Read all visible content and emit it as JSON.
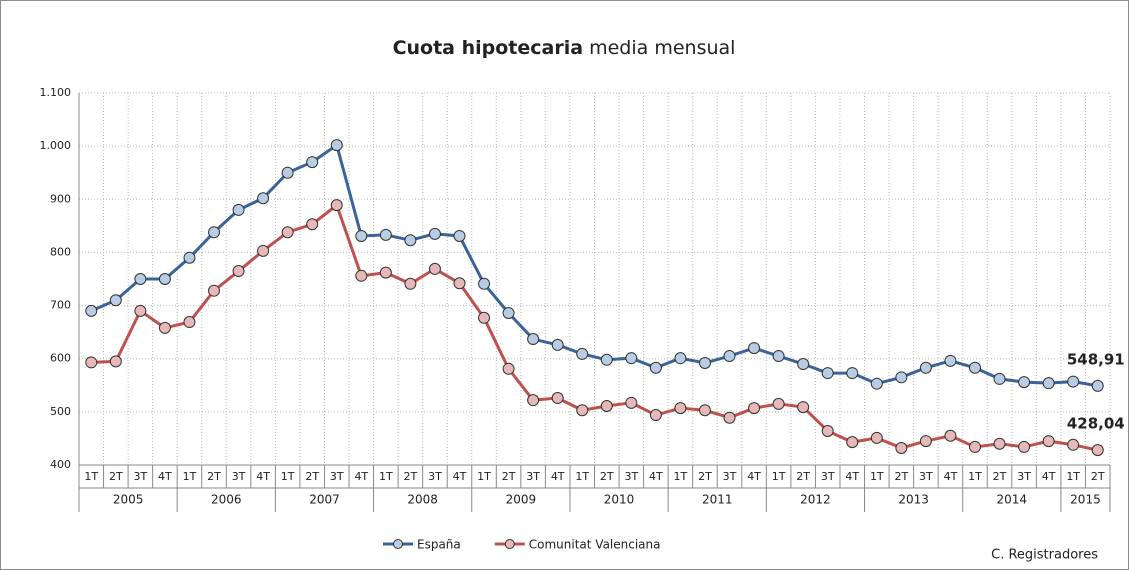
{
  "chart_data": {
    "type": "line",
    "title_bold": "Cuota hipotecaria",
    "title": "media mensual",
    "source": "C. Registradores",
    "categories": [
      "1T",
      "2T",
      "3T",
      "4T",
      "1T",
      "2T",
      "3T",
      "4T",
      "1T",
      "2T",
      "3T",
      "4T",
      "1T",
      "2T",
      "3T",
      "4T",
      "1T",
      "2T",
      "3T",
      "4T",
      "1T",
      "2T",
      "3T",
      "4T",
      "1T",
      "2T",
      "3T",
      "4T",
      "1T",
      "2T",
      "3T",
      "4T",
      "1T",
      "2T",
      "3T",
      "4T",
      "1T",
      "2T",
      "3T",
      "4T",
      "1T",
      "2T"
    ],
    "category_groups": [
      "2005",
      "2006",
      "2007",
      "2008",
      "2009",
      "2010",
      "2011",
      "2012",
      "2013",
      "2014",
      "2015"
    ],
    "series": [
      {
        "name": "España",
        "color": "#3a6399",
        "marker_fill": "#b8cce4",
        "label_color": "#2f5597",
        "values": [
          690,
          710,
          750,
          750,
          790,
          838,
          880,
          902,
          950,
          970,
          1002,
          831,
          833,
          823,
          835,
          831,
          741,
          686,
          637,
          626,
          609,
          598,
          601,
          583,
          601,
          592,
          605,
          620,
          605,
          590,
          573,
          573,
          553,
          565,
          583,
          596,
          583,
          562,
          556,
          554,
          557,
          548.91
        ],
        "value_labels": [
          null,
          null,
          null,
          null,
          null,
          null,
          null,
          null,
          null,
          null,
          null,
          null,
          null,
          null,
          null,
          null,
          null,
          null,
          null,
          null,
          null,
          null,
          null,
          null,
          null,
          null,
          null,
          null,
          null,
          null,
          null,
          null,
          null,
          null,
          null,
          null,
          null,
          null,
          null,
          null,
          null,
          "548,91"
        ]
      },
      {
        "name": "Comunitat Valenciana",
        "color": "#c0504d",
        "marker_fill": "#e6b9b8",
        "label_color": "#a0501e",
        "values": [
          593,
          595,
          690,
          658,
          669,
          728,
          765,
          803,
          838,
          853,
          889,
          756,
          762,
          741,
          769,
          742,
          677,
          581,
          522,
          526,
          503,
          511,
          517,
          494,
          507,
          503,
          489,
          507,
          515,
          509,
          464,
          443,
          451,
          432,
          445,
          455,
          434,
          440,
          434,
          445,
          438,
          428.04
        ],
        "value_labels": [
          null,
          null,
          null,
          null,
          null,
          null,
          null,
          null,
          null,
          null,
          null,
          null,
          null,
          null,
          null,
          null,
          null,
          null,
          null,
          null,
          null,
          null,
          null,
          null,
          null,
          null,
          null,
          null,
          null,
          null,
          null,
          null,
          null,
          null,
          null,
          null,
          null,
          null,
          null,
          null,
          null,
          "428,04"
        ]
      }
    ],
    "ylim": [
      400,
      1100
    ],
    "yticks": [
      400,
      500,
      600,
      700,
      800,
      900,
      {
        "value": 1000,
        "label": "1.000"
      },
      {
        "value": 1100,
        "label": "1.100"
      }
    ],
    "grid": true,
    "legend": "bottom"
  }
}
